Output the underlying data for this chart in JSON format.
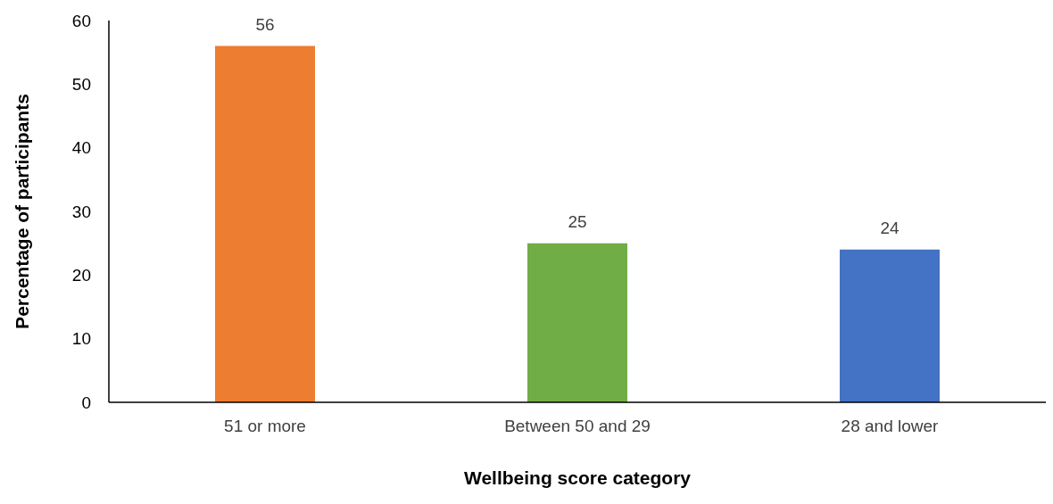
{
  "chart_data": {
    "type": "bar",
    "categories": [
      "51 or more",
      "Between 50 and 29",
      "28 and lower"
    ],
    "values": [
      56,
      25,
      24
    ],
    "colors": [
      "#ed7d31",
      "#70ad47",
      "#4472c4"
    ],
    "xlabel": "Wellbeing score category",
    "ylabel": "Percentage of participants",
    "ylim": [
      0,
      60
    ],
    "yticks": [
      0,
      10,
      20,
      30,
      40,
      50,
      60
    ],
    "data_labels": true,
    "grid": false,
    "legend": false
  }
}
